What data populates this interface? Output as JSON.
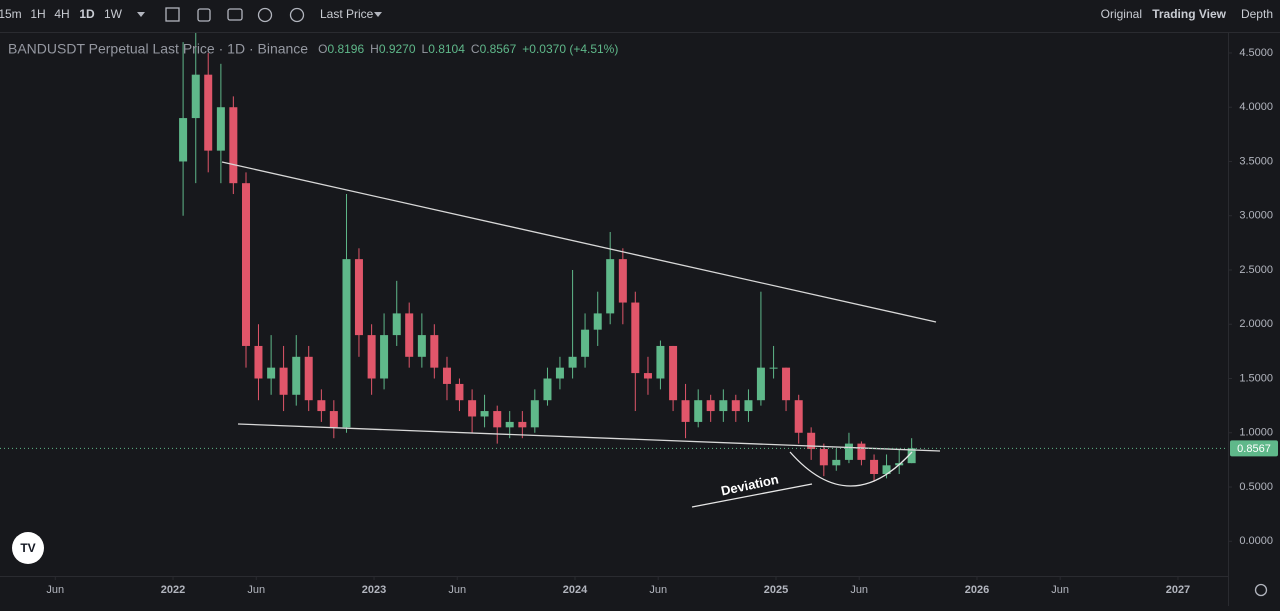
{
  "toolbar": {
    "intervals": [
      "15m",
      "1H",
      "4H",
      "1D",
      "1W"
    ],
    "price_type": "Last Price",
    "views": [
      "Original",
      "Trading View",
      "Depth"
    ]
  },
  "chart_data": {
    "type": "candlestick",
    "title": "BANDUSDT Perpetual Last Price · 1D · Binance",
    "legend_values": [
      {
        "label": "O",
        "value": "0.8196"
      },
      {
        "label": "H",
        "value": "0.9270"
      },
      {
        "label": "L",
        "value": "0.8104"
      },
      {
        "label": "C",
        "value": "0.8567"
      }
    ],
    "change": "+0.0370 (+4.51%)",
    "annotation": "Deviation",
    "up_color": "#5fb88a",
    "down_color": "#e0566a",
    "last_price": {
      "value": 0.8567,
      "label": "0.8567"
    },
    "candles": {
      "x": [
        2022.05,
        2022.113,
        2022.175,
        2022.238,
        2022.3,
        2022.363,
        2022.425,
        2022.488,
        2022.55,
        2022.613,
        2022.675,
        2022.738,
        2022.8,
        2022.863,
        2022.925,
        2022.988,
        2023.05,
        2023.113,
        2023.175,
        2023.238,
        2023.3,
        2023.363,
        2023.425,
        2023.488,
        2023.55,
        2023.613,
        2023.675,
        2023.738,
        2023.8,
        2023.863,
        2023.925,
        2023.988,
        2024.05,
        2024.113,
        2024.175,
        2024.238,
        2024.3,
        2024.363,
        2024.425,
        2024.488,
        2024.55,
        2024.613,
        2024.675,
        2024.738,
        2024.8,
        2024.863,
        2024.925,
        2024.988,
        2025.05,
        2025.113,
        2025.175,
        2025.238,
        2025.3,
        2025.363,
        2025.425,
        2025.488,
        2025.55,
        2025.613,
        2025.675
      ],
      "open": [
        3.5,
        3.9,
        4.3,
        3.6,
        4.0,
        3.3,
        1.8,
        1.5,
        1.6,
        1.35,
        1.7,
        1.3,
        1.2,
        1.05,
        2.6,
        1.9,
        1.5,
        1.9,
        2.1,
        1.7,
        1.9,
        1.6,
        1.45,
        1.3,
        1.15,
        1.2,
        1.05,
        1.1,
        1.05,
        1.3,
        1.5,
        1.6,
        1.7,
        1.95,
        2.1,
        2.6,
        2.2,
        1.55,
        1.5,
        1.8,
        1.3,
        1.1,
        1.3,
        1.2,
        1.3,
        1.2,
        1.3,
        1.6,
        1.6,
        1.3,
        1.0,
        0.85,
        0.7,
        0.75,
        0.9,
        0.75,
        0.62,
        0.7,
        0.72
      ],
      "high": [
        4.6,
        4.7,
        4.5,
        4.4,
        4.1,
        3.4,
        2.0,
        1.9,
        1.8,
        1.9,
        1.8,
        1.4,
        1.3,
        3.2,
        2.7,
        2.0,
        2.1,
        2.4,
        2.2,
        2.1,
        2.0,
        1.7,
        1.5,
        1.4,
        1.35,
        1.25,
        1.2,
        1.2,
        1.4,
        1.6,
        1.7,
        2.5,
        2.1,
        2.3,
        2.85,
        2.7,
        2.3,
        1.7,
        1.85,
        1.8,
        1.45,
        1.4,
        1.35,
        1.4,
        1.35,
        1.4,
        2.3,
        1.8,
        1.6,
        1.35,
        1.05,
        0.9,
        0.85,
        1.0,
        0.92,
        0.8,
        0.8,
        0.85,
        0.95
      ],
      "low": [
        3.0,
        3.3,
        3.4,
        3.3,
        3.2,
        1.6,
        1.3,
        1.35,
        1.2,
        1.25,
        1.2,
        1.1,
        0.95,
        1.0,
        1.7,
        1.35,
        1.4,
        1.8,
        1.6,
        1.6,
        1.5,
        1.3,
        1.2,
        1.0,
        1.05,
        0.9,
        0.95,
        0.95,
        1.0,
        1.25,
        1.4,
        1.5,
        1.6,
        1.8,
        2.0,
        2.0,
        1.2,
        1.35,
        1.4,
        1.2,
        0.95,
        1.05,
        1.1,
        1.1,
        1.1,
        1.1,
        1.25,
        1.5,
        1.2,
        0.9,
        0.75,
        0.6,
        0.65,
        0.72,
        0.7,
        0.55,
        0.58,
        0.62,
        0.72
      ],
      "close": [
        3.9,
        4.3,
        3.6,
        4.0,
        3.3,
        1.8,
        1.5,
        1.6,
        1.35,
        1.7,
        1.3,
        1.2,
        1.05,
        2.6,
        1.9,
        1.5,
        1.9,
        2.1,
        1.7,
        1.9,
        1.6,
        1.45,
        1.3,
        1.15,
        1.2,
        1.05,
        1.1,
        1.05,
        1.3,
        1.5,
        1.6,
        1.7,
        1.95,
        2.1,
        2.6,
        2.2,
        1.55,
        1.5,
        1.8,
        1.3,
        1.1,
        1.3,
        1.2,
        1.3,
        1.2,
        1.3,
        1.6,
        1.6,
        1.3,
        1.0,
        0.85,
        0.7,
        0.75,
        0.9,
        0.75,
        0.62,
        0.7,
        0.72,
        0.8567
      ]
    },
    "xlim": [
      2021.139,
      2027.249
    ],
    "xticks": [
      {
        "value": 2021.414,
        "label": "Jun"
      },
      2022,
      {
        "value": 2022.414,
        "label": "Jun"
      },
      2023,
      {
        "value": 2023.414,
        "label": "Jun"
      },
      2024,
      {
        "value": 2024.414,
        "label": "Jun"
      },
      2025,
      {
        "value": 2025.414,
        "label": "Jun"
      },
      2026,
      {
        "value": 2026.414,
        "label": "Jun"
      },
      2027
    ],
    "ylim": [
      -0.32,
      4.684
    ],
    "yticks": [
      {
        "value": 0,
        "label": "0.0000"
      },
      {
        "value": 0.5,
        "label": "0.5000"
      },
      {
        "value": 1,
        "label": "1.0000"
      },
      {
        "value": 1.5,
        "label": "1.5000"
      },
      {
        "value": 2,
        "label": "2.0000"
      },
      {
        "value": 2.5,
        "label": "2.5000"
      },
      {
        "value": 3,
        "label": "3.0000"
      },
      {
        "value": 3.5,
        "label": "3.5000"
      },
      {
        "value": 4,
        "label": "4.0000"
      },
      {
        "value": 4.5,
        "label": "4.5000"
      }
    ]
  }
}
